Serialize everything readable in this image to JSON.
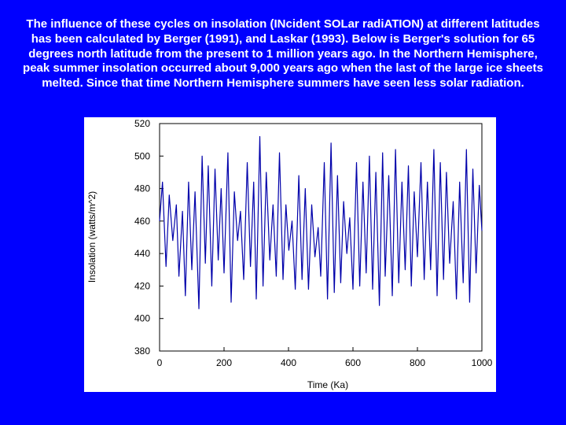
{
  "caption": "The influence of these cycles on insolation (INcident SOLar radiATION) at different latitudes has been calculated by Berger (1991), and Laskar (1993). Below is Berger's solution for 65 degrees north latitude from the present to 1 million years ago. In the Northern Hemisphere, peak summer insolation occurred about 9,000 years ago when the last of the large ice sheets melted. Since that time Northern Hemisphere summers have seen less solar radiation.",
  "colors": {
    "background": "#0000ff",
    "plot_background": "#ffffff",
    "line": "#0000aa"
  },
  "chart_data": {
    "type": "line",
    "title": "",
    "xlabel": "Time (Ka)",
    "ylabel": "Insolation (watts/m^2)",
    "xlim": [
      0,
      1000
    ],
    "ylim": [
      380,
      520
    ],
    "xticks": [
      "0",
      "200",
      "400",
      "600",
      "800",
      "1000"
    ],
    "yticks": [
      "520",
      "500",
      "480",
      "460",
      "440",
      "420",
      "400",
      "380"
    ],
    "grid": false,
    "legend": "none",
    "series": [
      {
        "name": "",
        "x": [
          0,
          9,
          20,
          30,
          41,
          52,
          60,
          71,
          80,
          90,
          100,
          110,
          122,
          132,
          142,
          151,
          162,
          172,
          182,
          191,
          200,
          212,
          222,
          232,
          242,
          251,
          261,
          272,
          282,
          292,
          300,
          311,
          321,
          331,
          342,
          352,
          362,
          372,
          383,
          392,
          401,
          411,
          421,
          432,
          442,
          452,
          462,
          472,
          482,
          492,
          500,
          511,
          521,
          532,
          542,
          552,
          562,
          571,
          581,
          590,
          600,
          611,
          621,
          631,
          641,
          651,
          661,
          671,
          682,
          692,
          700,
          711,
          722,
          732,
          742,
          752,
          762,
          772,
          781,
          790,
          800,
          811,
          821,
          831,
          841,
          851,
          861,
          871,
          881,
          890,
          900,
          911,
          921,
          931,
          942,
          952,
          962,
          972,
          982,
          992,
          1000
        ],
        "values": [
          460,
          484,
          432,
          476,
          448,
          470,
          426,
          466,
          414,
          484,
          430,
          478,
          406,
          500,
          434,
          494,
          420,
          492,
          436,
          480,
          428,
          502,
          410,
          478,
          448,
          466,
          424,
          496,
          432,
          484,
          412,
          512,
          420,
          490,
          436,
          470,
          426,
          502,
          424,
          470,
          442,
          460,
          418,
          488,
          424,
          480,
          418,
          470,
          438,
          456,
          426,
          496,
          412,
          508,
          416,
          488,
          422,
          472,
          440,
          462,
          418,
          496,
          420,
          484,
          428,
          500,
          418,
          490,
          408,
          502,
          426,
          488,
          414,
          504,
          422,
          484,
          430,
          494,
          420,
          478,
          438,
          496,
          424,
          484,
          430,
          504,
          414,
          496,
          424,
          490,
          434,
          472,
          412,
          484,
          422,
          504,
          410,
          492,
          428,
          482,
          454
        ]
      }
    ]
  }
}
